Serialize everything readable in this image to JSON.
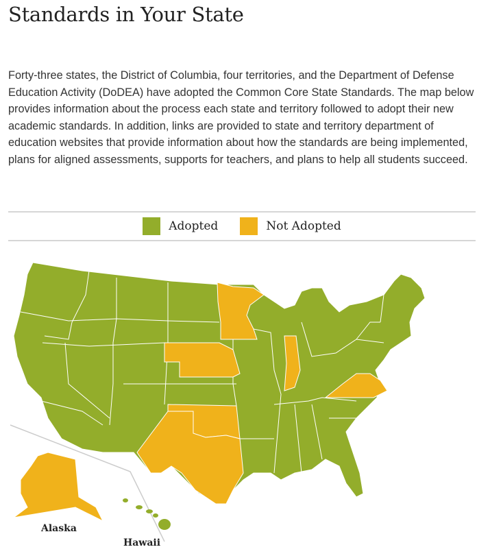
{
  "page_title": "Standards in Your State",
  "intro": "Forty-three states, the District of Columbia, four territories, and the Department of Defense Education Activity (DoDEA) have adopted the Common Core State Standards. The map below provides information about the process each state and territory followed to adopt their new academic standards. In addition, links are provided to state and territory department of education websites that provide information about how the standards are being implemented, plans for aligned assessments, supports for teachers, and plans to help all students succeed.",
  "legend": [
    {
      "label": "Adopted",
      "color": "#93ad2b"
    },
    {
      "label": "Not Adopted",
      "color": "#f0b21b"
    }
  ],
  "map": {
    "not_adopted_states": [
      "Minnesota",
      "Nebraska",
      "Indiana",
      "Virginia",
      "Oklahoma",
      "Texas",
      "Alaska"
    ],
    "inset_labels": {
      "alaska": "Alaska",
      "hawaii": "Hawaii"
    }
  }
}
